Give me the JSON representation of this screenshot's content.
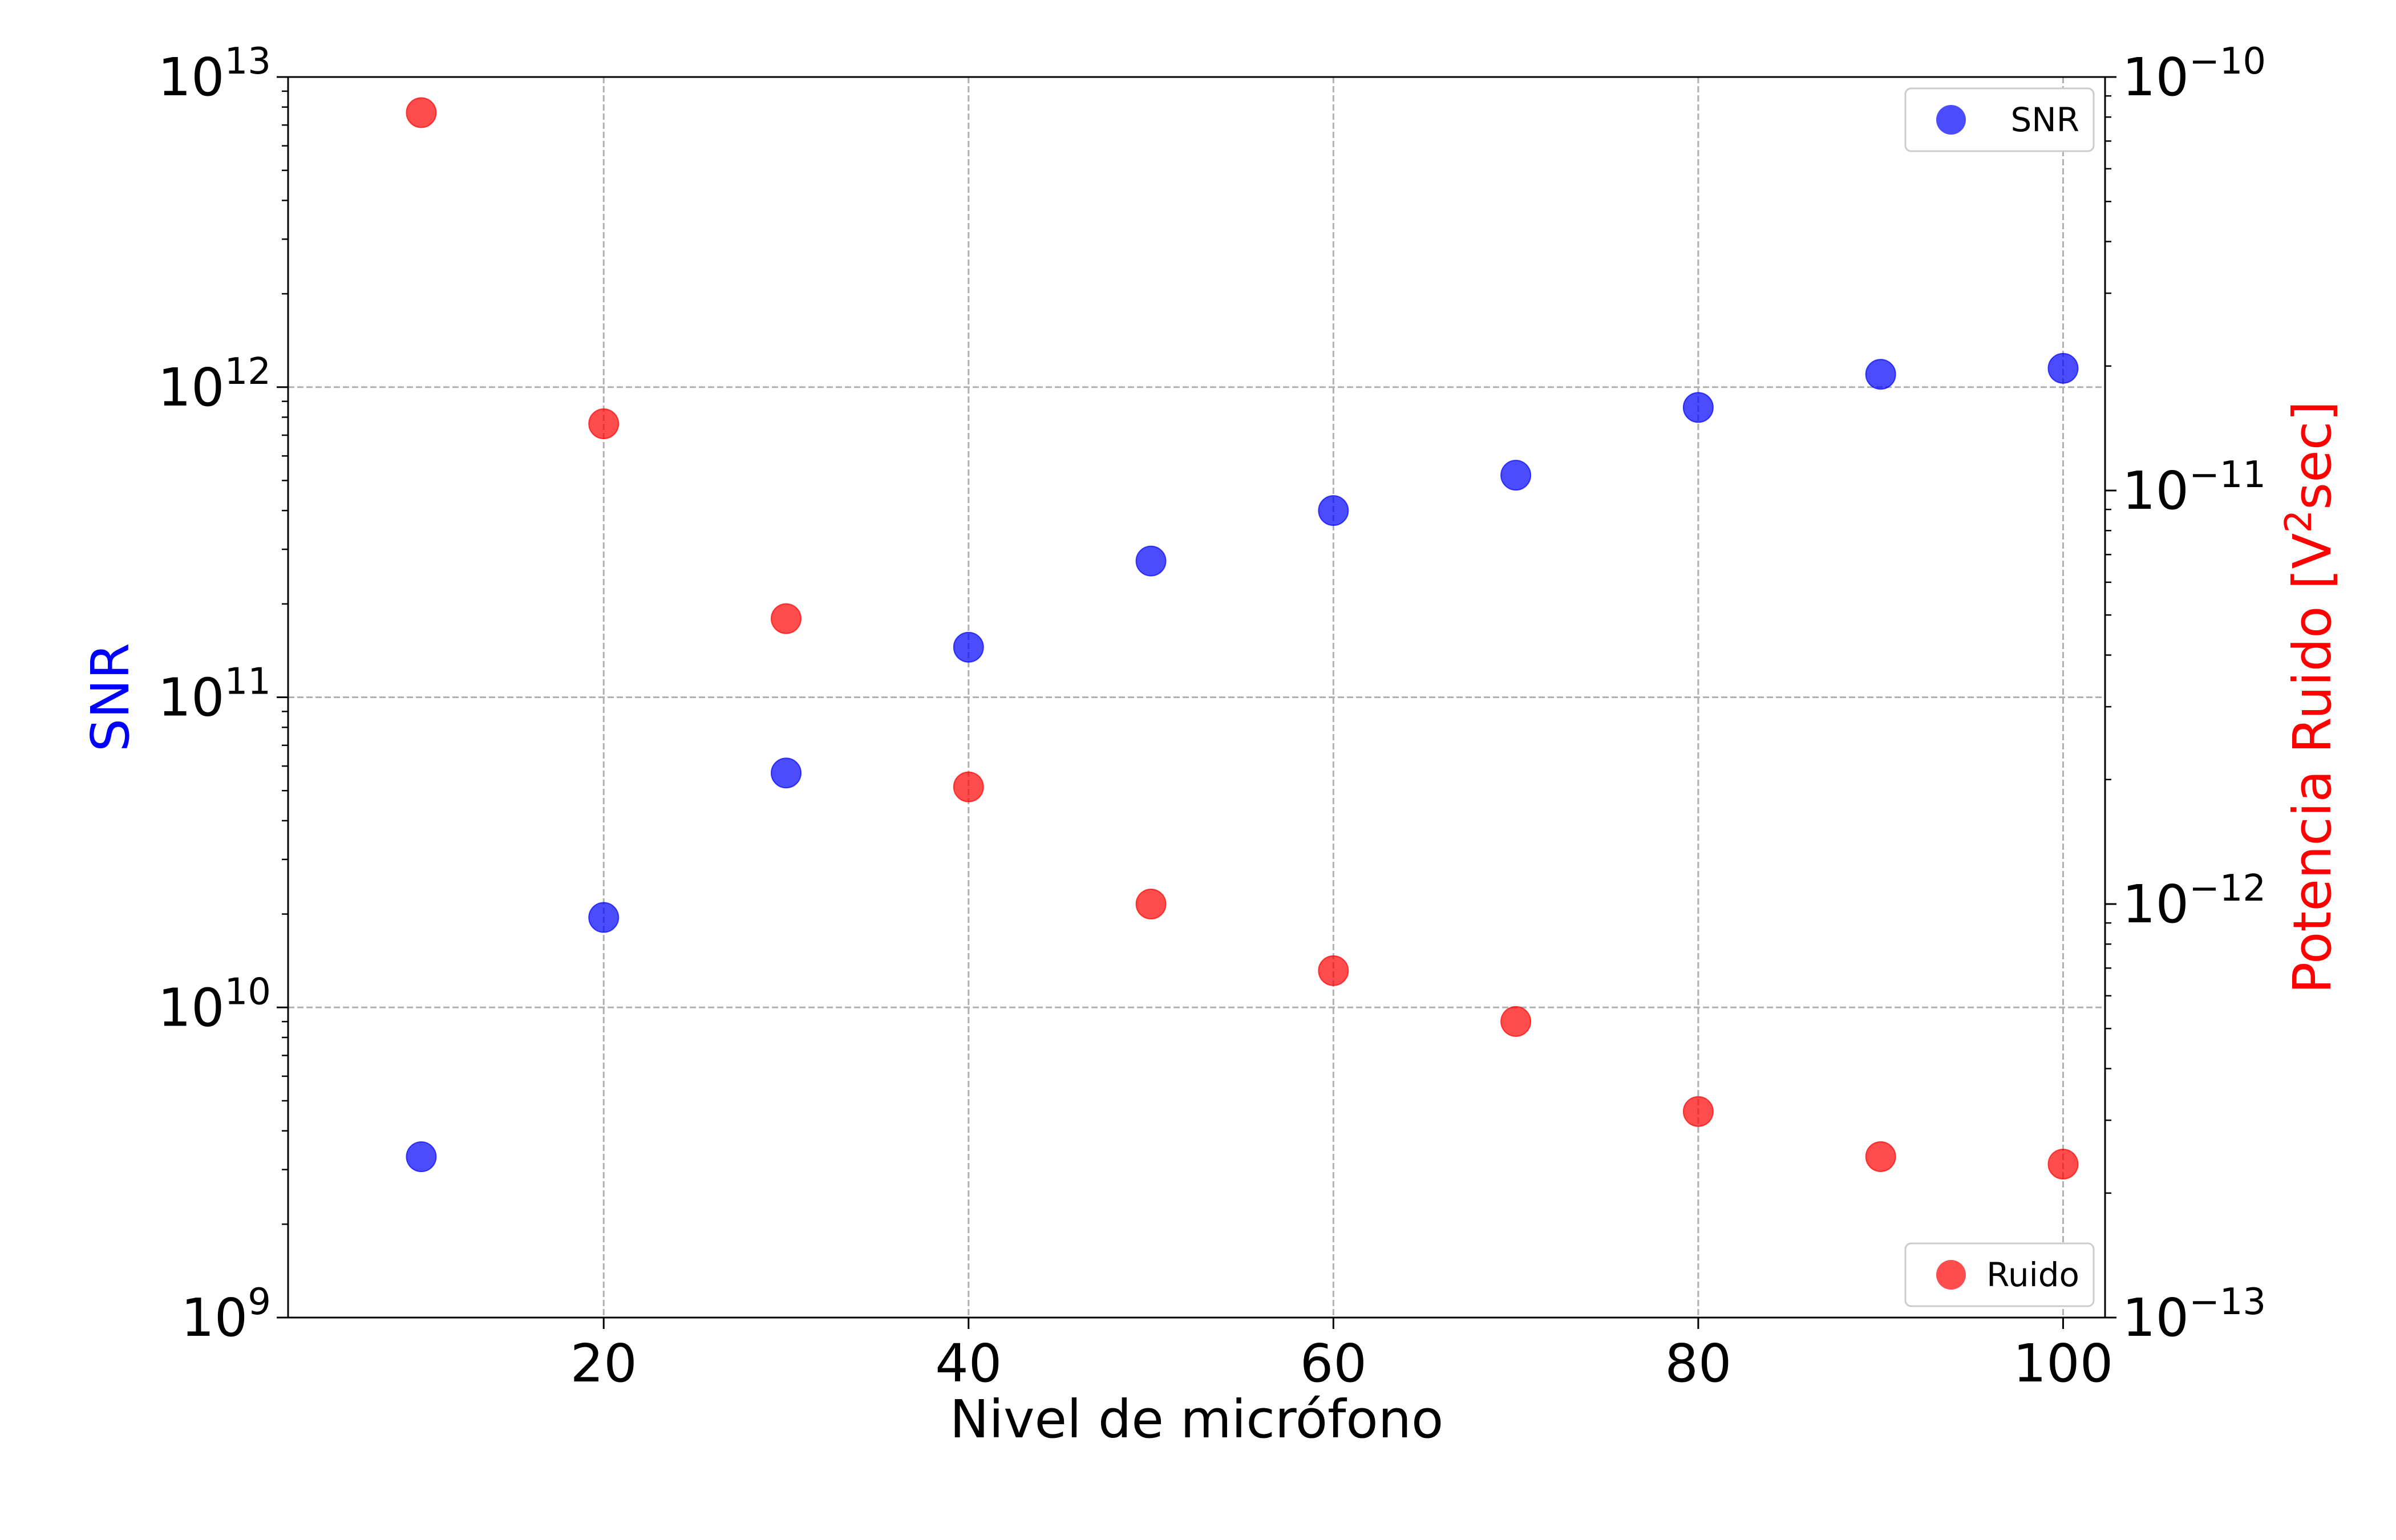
{
  "chart_data": {
    "type": "scatter",
    "xlabel": "Nivel de micrófono",
    "ylabel_left": "SNR",
    "ylabel_right": "Potencia Ruido [V²sec]",
    "ylabel_right_parts": {
      "prefix": "Potencia Ruido [V",
      "sup": "2",
      "suffix": "sec]"
    },
    "xlim": [
      2.7,
      102.3
    ],
    "ylim_left": [
      1000000000.0,
      10000000000000.0
    ],
    "ylim_right": [
      1e-13,
      1e-10
    ],
    "yscale_left": "log",
    "yscale_right": "log",
    "grid": true,
    "x_ticks": [
      20,
      40,
      60,
      80,
      100
    ],
    "x_tick_labels": [
      "20",
      "40",
      "60",
      "80",
      "100"
    ],
    "y_left_ticks": [
      {
        "value": 1000000000.0,
        "base": "10",
        "exp": "9"
      },
      {
        "value": 10000000000.0,
        "base": "10",
        "exp": "10"
      },
      {
        "value": 100000000000.0,
        "base": "10",
        "exp": "11"
      },
      {
        "value": 1000000000000.0,
        "base": "10",
        "exp": "12"
      },
      {
        "value": 10000000000000.0,
        "base": "10",
        "exp": "13"
      }
    ],
    "y_right_ticks": [
      {
        "value": 1e-13,
        "base": "10",
        "exp": "−13"
      },
      {
        "value": 1e-12,
        "base": "10",
        "exp": "−12"
      },
      {
        "value": 1e-11,
        "base": "10",
        "exp": "−11"
      },
      {
        "value": 1e-10,
        "base": "10",
        "exp": "−10"
      }
    ],
    "series": [
      {
        "name": "SNR",
        "axis": "left",
        "color": "#0000ff",
        "x": [
          10,
          20,
          30,
          40,
          50,
          60,
          70,
          80,
          90,
          100
        ],
        "y": [
          3300000000.0,
          19500000000.0,
          57000000000.0,
          145000000000.0,
          275000000000.0,
          400000000000.0,
          520000000000.0,
          860000000000.0,
          1100000000000.0,
          1150000000000.0
        ]
      },
      {
        "name": "Ruido",
        "axis": "right",
        "color": "#ff0000",
        "x": [
          10,
          20,
          30,
          40,
          50,
          60,
          70,
          80,
          90,
          100
        ],
        "y": [
          8.2e-11,
          1.45e-11,
          4.9e-12,
          1.92e-12,
          1e-12,
          6.9e-13,
          5.2e-13,
          3.15e-13,
          2.45e-13,
          2.35e-13
        ]
      }
    ],
    "legends": [
      {
        "series": "SNR",
        "placement": "upper right"
      },
      {
        "series": "Ruido",
        "placement": "lower right"
      }
    ]
  }
}
